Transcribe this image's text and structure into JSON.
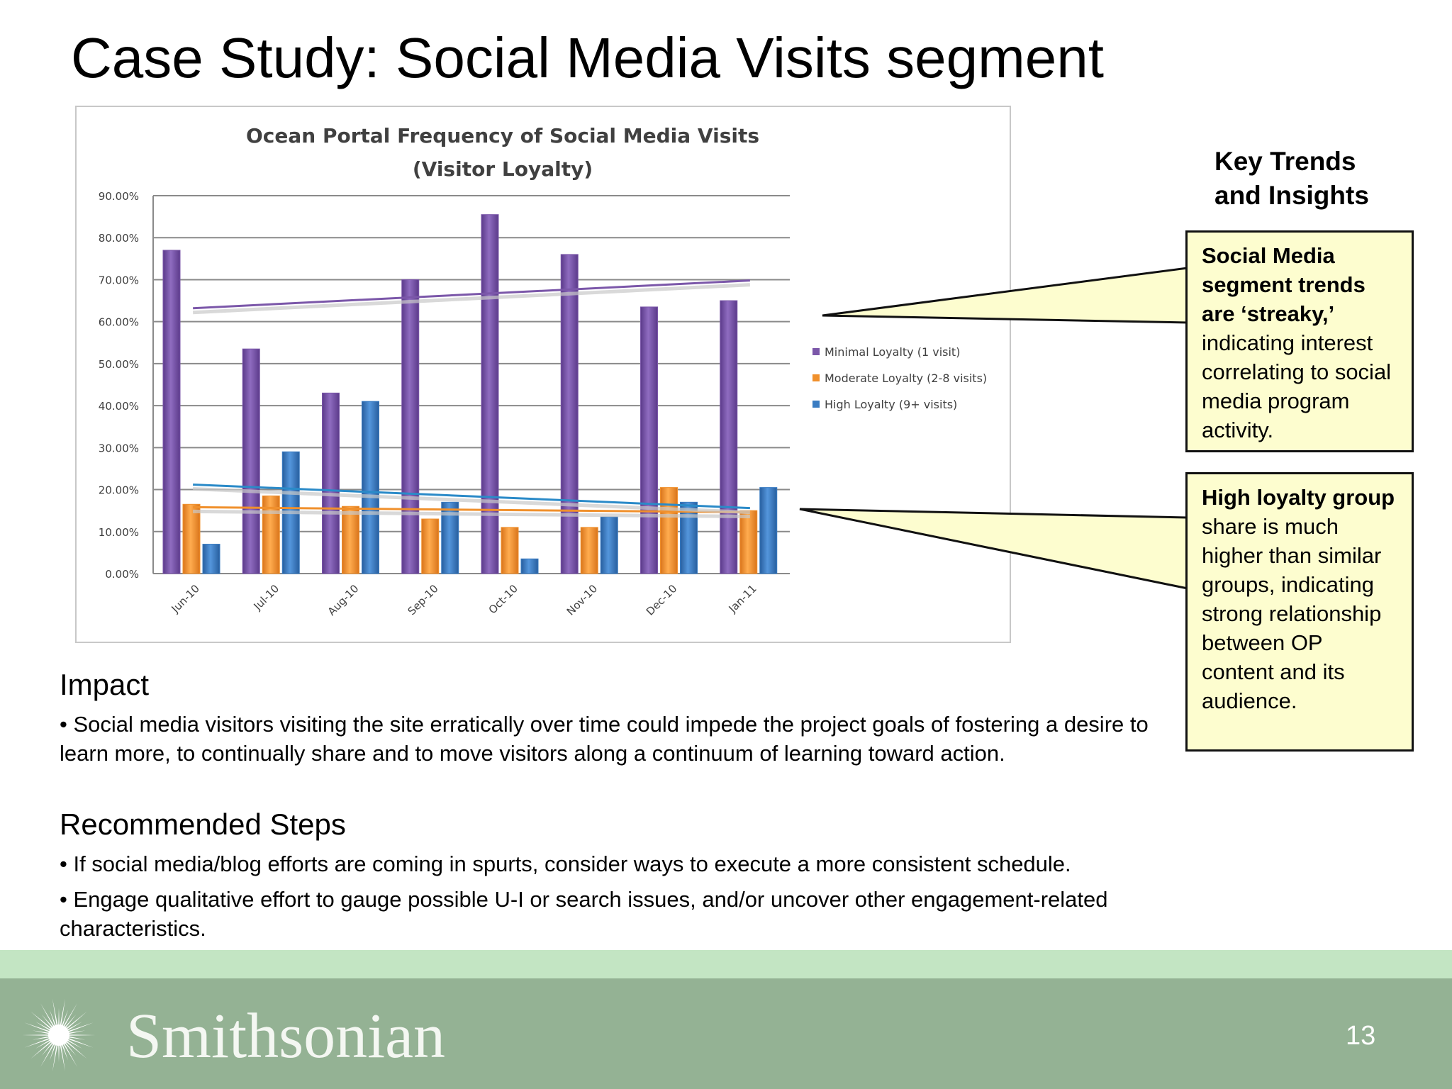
{
  "slide": {
    "title": "Case Study: Social Media Visits segment",
    "page_number": "13"
  },
  "colors": {
    "minimal": "#7b57a9",
    "moderate": "#f0902c",
    "high": "#3a7cc2",
    "callout_fill": "#fdfdcf",
    "footer_band": "#94b294",
    "footer_light": "#c3e5c3"
  },
  "chart_data": {
    "type": "bar",
    "title": "Ocean Portal Frequency of Social Media Visits",
    "subtitle": "(Visitor Loyalty)",
    "categories": [
      "Jun-10",
      "Jul-10",
      "Aug-10",
      "Sep-10",
      "Oct-10",
      "Nov-10",
      "Dec-10",
      "Jan-11"
    ],
    "series": [
      {
        "name": "Minimal Loyalty (1 visit)",
        "color": "#7b57a9",
        "values": [
          77,
          53.5,
          43,
          70,
          85.5,
          76,
          63.5,
          65
        ]
      },
      {
        "name": "Moderate Loyalty (2-8 visits)",
        "color": "#f0902c",
        "values": [
          16.5,
          18.5,
          16,
          13,
          11,
          11,
          20.5,
          15
        ]
      },
      {
        "name": "High Loyalty (9+ visits)",
        "color": "#3a7cc2",
        "values": [
          7,
          29,
          41,
          17,
          3.5,
          13.5,
          17,
          20.5
        ]
      }
    ],
    "trendlines": [
      {
        "series": "Minimal Loyalty (1 visit)",
        "start": 63.2,
        "end": 69.8,
        "color": "#7b57a9"
      },
      {
        "series": "Moderate Loyalty (2-8 visits)",
        "start": 15.8,
        "end": 14.6,
        "color": "#f0902c"
      },
      {
        "series": "High Loyalty (9+ visits)",
        "start": 21.2,
        "end": 15.6,
        "color": "#2a8ac8"
      }
    ],
    "y_ticks": [
      "0.00%",
      "10.00%",
      "20.00%",
      "30.00%",
      "40.00%",
      "50.00%",
      "60.00%",
      "70.00%",
      "80.00%",
      "90.00%"
    ],
    "ylim": [
      0,
      90
    ],
    "grid": true,
    "legend_position": "right"
  },
  "key_trends": {
    "heading_line1": "Key Trends",
    "heading_line2": "and Insights"
  },
  "callouts": [
    {
      "bold": "Social Media segment trends are ‘streaky,’",
      "text": " indicating interest correlating to social media program activity."
    },
    {
      "bold": "High loyalty group",
      "text": " share is much higher than similar groups, indicating strong relationship between OP content and its audience."
    }
  ],
  "impact": {
    "heading": "Impact",
    "bullets": [
      "• Social media visitors visiting the site erratically over time could impede the project goals of fostering a desire to learn more, to continually share and to move visitors along a continuum of learning toward action."
    ]
  },
  "recommended": {
    "heading": "Recommended Steps",
    "bullets": [
      "• If social media/blog efforts are coming in spurts, consider ways to execute a more consistent schedule.",
      "• Engage qualitative effort to gauge possible U-I or search issues, and/or uncover other engagement-related characteristics."
    ]
  },
  "footer": {
    "logo_text": "Smithsonian",
    "logo_icon": "sunburst-icon"
  }
}
